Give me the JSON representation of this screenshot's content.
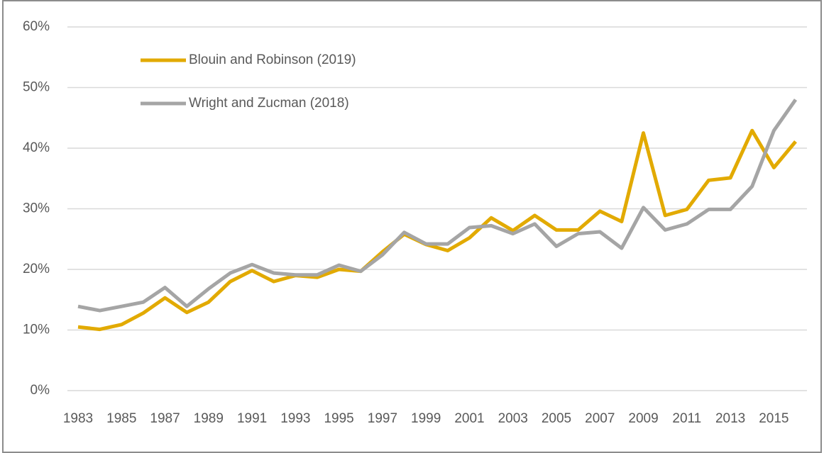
{
  "chart_data": {
    "type": "line",
    "categories": [
      "1983",
      null,
      "1985",
      null,
      "1987",
      null,
      "1989",
      null,
      "1991",
      null,
      "1993",
      null,
      "1995",
      null,
      "1997",
      null,
      "1999",
      null,
      "2001",
      null,
      "2003",
      null,
      "2005",
      null,
      "2007",
      null,
      "2009",
      null,
      "2011",
      null,
      "2013",
      null,
      "2015",
      null
    ],
    "series": [
      {
        "name": "Blouin and Robinson (2019)",
        "color": "#e2aa00",
        "values": [
          10.5,
          10.1,
          10.9,
          12.8,
          15.3,
          12.9,
          14.6,
          18.0,
          19.8,
          18.0,
          19.0,
          18.7,
          20.0,
          19.7,
          22.9,
          25.8,
          24.1,
          23.1,
          25.2,
          28.5,
          26.4,
          28.9,
          26.5,
          26.5,
          29.6,
          27.9,
          42.5,
          28.9,
          29.9,
          34.7,
          35.1,
          42.9,
          36.8,
          41.1
        ]
      },
      {
        "name": "Wright and Zucman (2018)",
        "color": "#a5a5a5",
        "values": [
          13.9,
          13.2,
          13.9,
          14.6,
          17.0,
          13.9,
          16.8,
          19.4,
          20.8,
          19.4,
          19.1,
          19.1,
          20.7,
          19.7,
          22.4,
          26.1,
          24.2,
          24.2,
          26.9,
          27.2,
          25.9,
          27.5,
          23.8,
          25.9,
          26.2,
          23.5,
          30.2,
          26.5,
          27.5,
          29.9,
          29.9,
          33.7,
          42.9,
          48.0
        ]
      }
    ],
    "ylim": [
      0,
      60
    ],
    "yticks": [
      {
        "value": 0,
        "label": "0%"
      },
      {
        "value": 10,
        "label": "10%"
      },
      {
        "value": 20,
        "label": "20%"
      },
      {
        "value": 30,
        "label": "30%"
      },
      {
        "value": 40,
        "label": "40%"
      },
      {
        "value": 50,
        "label": "50%"
      },
      {
        "value": 60,
        "label": "60%"
      }
    ],
    "grid": true,
    "legend": "upper left"
  }
}
